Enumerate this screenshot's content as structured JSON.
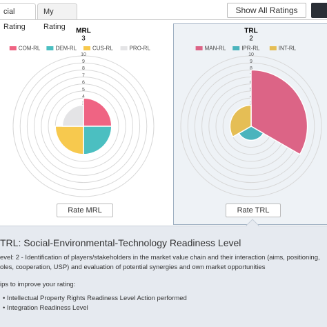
{
  "tabs": [
    "cial Rating",
    "My Rating"
  ],
  "show_all": "Show All Ratings",
  "chart_data": [
    {
      "type": "polar_area",
      "title": "MRL",
      "subtitle": "3",
      "categories": [
        "COM-RL",
        "DEM-RL",
        "CUS-RL",
        "PRO-RL"
      ],
      "values": [
        4,
        4,
        4,
        3
      ],
      "colors": [
        "#ef6483",
        "#4bbfc1",
        "#f7c94e",
        "#e4e4e6"
      ],
      "rlim": [
        0,
        10
      ],
      "rticks": [
        1,
        2,
        3,
        4,
        5,
        6,
        7,
        8,
        9,
        10
      ],
      "button": "Rate MRL"
    },
    {
      "type": "polar_area",
      "title": "TRL",
      "subtitle": "2",
      "categories": [
        "MAN-RL",
        "IPR-RL",
        "INT-RL"
      ],
      "values": [
        8,
        2,
        3
      ],
      "colors": [
        "#dc6486",
        "#4bb4bd",
        "#e5be55"
      ],
      "rlim": [
        0,
        10
      ],
      "rticks": [
        1,
        2,
        3,
        4,
        5,
        6,
        7,
        8,
        9,
        10
      ],
      "button": "Rate TRL"
    }
  ],
  "info": {
    "title": "TRL: Social-Environmental-Technology Readiness Level",
    "lines": [
      "evel: 2 - Identification of players/stakeholders in the market value chain and their interaction (aims, positioning,",
      "oles, cooperation, USP) and evaluation of potential synergies and own market opportunities"
    ],
    "tips_title": "ips to improve your rating:",
    "tips": [
      "Intellectual Property Rights Readiness Level Action performed",
      "Integration Readiness Level"
    ]
  }
}
